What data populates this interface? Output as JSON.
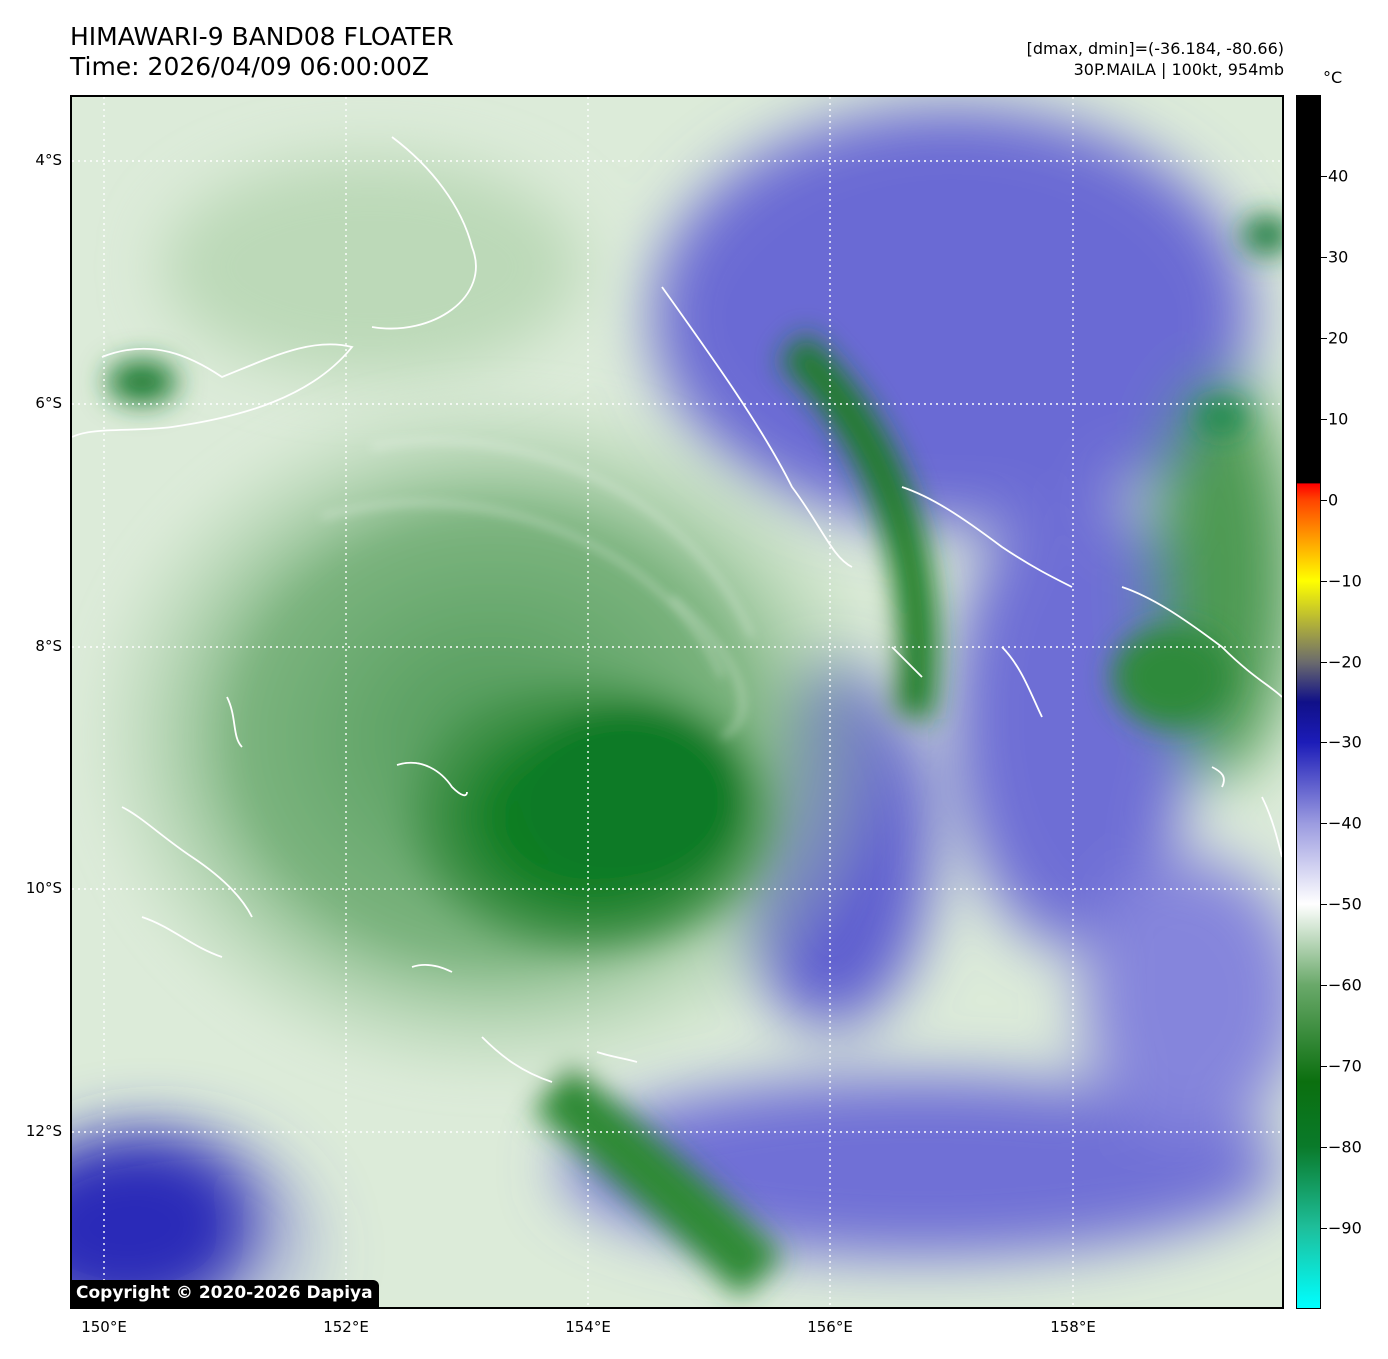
{
  "title": {
    "line1": "HIMAWARI-9 BAND08 FLOATER",
    "line2": "Time: 2026/04/09 06:00:00Z"
  },
  "meta": {
    "range": "[dmax, dmin]=(-36.184, -80.66)",
    "storm": "30P.MAILA | 100kt, 954mb"
  },
  "map": {
    "lat_labels": [
      "4°S",
      "6°S",
      "8°S",
      "10°S",
      "12°S"
    ],
    "lon_labels": [
      "150°E",
      "152°E",
      "154°E",
      "156°E",
      "158°E"
    ],
    "grid": true,
    "coastline_color": "#ffffff"
  },
  "copyright": "Copyright © 2020-2026 Dapiya",
  "colorbar": {
    "unit": "°C",
    "ticks": [
      "40",
      "30",
      "20",
      "10",
      "0",
      "−10",
      "−20",
      "−30",
      "−40",
      "−50",
      "−60",
      "−70",
      "−80",
      "−90"
    ],
    "min": -100,
    "max": 50,
    "stops": [
      {
        "v": -100,
        "c": "#00ffff"
      },
      {
        "v": -90,
        "c": "#1ebe9a"
      },
      {
        "v": -80,
        "c": "#0a7a2a"
      },
      {
        "v": -72,
        "c": "#0b6f0f"
      },
      {
        "v": -60,
        "c": "#6aa96a"
      },
      {
        "v": -50,
        "c": "#ffffff"
      },
      {
        "v": -40,
        "c": "#9b9be0"
      },
      {
        "v": -30,
        "c": "#1c1cb8"
      },
      {
        "v": -25,
        "c": "#101088"
      },
      {
        "v": -20,
        "c": "#6c6c6c"
      },
      {
        "v": -10,
        "c": "#ffff00"
      },
      {
        "v": 0,
        "c": "#ff4400"
      },
      {
        "v": 2,
        "c": "#ff0000"
      },
      {
        "v": 2.1,
        "c": "#000000"
      },
      {
        "v": 50,
        "c": "#000000"
      }
    ]
  }
}
